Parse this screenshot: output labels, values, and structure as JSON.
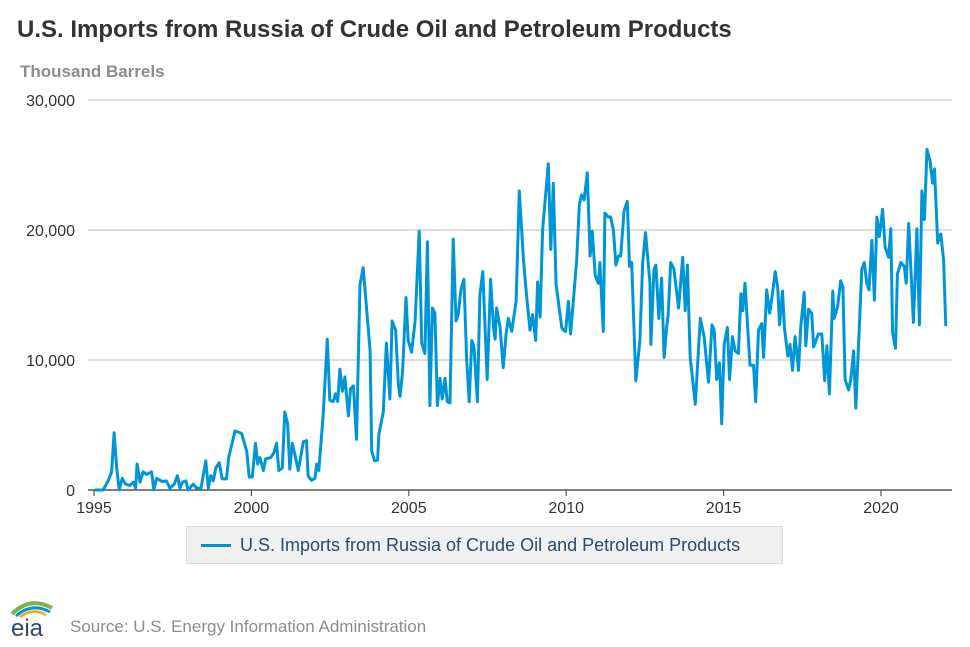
{
  "chart_data": {
    "type": "line",
    "title": "U.S. Imports from Russia of Crude Oil and Petroleum Products",
    "ylabel": "Thousand Barrels",
    "xlabel": "",
    "ylim": [
      0,
      30000
    ],
    "xlim": [
      1995,
      2022.3
    ],
    "yticks": [
      0,
      10000,
      20000,
      30000
    ],
    "ytick_labels": [
      "0",
      "10,000",
      "20,000",
      "30,000"
    ],
    "xticks": [
      1995,
      2000,
      2005,
      2010,
      2015,
      2020
    ],
    "xtick_labels": [
      "1995",
      "2000",
      "2005",
      "2010",
      "2015",
      "2020"
    ],
    "grid": true,
    "legend": "bottom-center",
    "color": "#0096d6",
    "series": [
      {
        "name": "U.S. Imports from Russia of Crude Oil and Petroleum Products",
        "points": [
          [
            1995.01,
            0
          ],
          [
            1995.29,
            0
          ],
          [
            1995.45,
            700
          ],
          [
            1995.56,
            1400
          ],
          [
            1995.64,
            4400
          ],
          [
            1995.72,
            1700
          ],
          [
            1995.8,
            0
          ],
          [
            1995.9,
            900
          ],
          [
            1996.0,
            450
          ],
          [
            1996.14,
            350
          ],
          [
            1996.25,
            600
          ],
          [
            1996.32,
            150
          ],
          [
            1996.37,
            2000
          ],
          [
            1996.46,
            600
          ],
          [
            1996.56,
            1400
          ],
          [
            1996.67,
            1200
          ],
          [
            1996.83,
            1400
          ],
          [
            1996.9,
            0
          ],
          [
            1996.99,
            900
          ],
          [
            1997.17,
            650
          ],
          [
            1997.3,
            700
          ],
          [
            1997.41,
            150
          ],
          [
            1997.55,
            450
          ],
          [
            1997.65,
            1100
          ],
          [
            1997.73,
            150
          ],
          [
            1997.81,
            600
          ],
          [
            1997.92,
            700
          ],
          [
            1997.99,
            0
          ],
          [
            1998.15,
            450
          ],
          [
            1998.26,
            150
          ],
          [
            1998.4,
            150
          ],
          [
            1998.55,
            2250
          ],
          [
            1998.63,
            150
          ],
          [
            1998.71,
            1100
          ],
          [
            1998.79,
            700
          ],
          [
            1998.87,
            1700
          ],
          [
            1998.98,
            2100
          ],
          [
            1999.07,
            850
          ],
          [
            1999.21,
            850
          ],
          [
            1999.28,
            2500
          ],
          [
            1999.48,
            4550
          ],
          [
            1999.69,
            4350
          ],
          [
            1999.85,
            3000
          ],
          [
            1999.93,
            1000
          ],
          [
            2000.03,
            1000
          ],
          [
            2000.13,
            3600
          ],
          [
            2000.2,
            2000
          ],
          [
            2000.27,
            2500
          ],
          [
            2000.38,
            1500
          ],
          [
            2000.45,
            2400
          ],
          [
            2000.62,
            2500
          ],
          [
            2000.72,
            2900
          ],
          [
            2000.8,
            3600
          ],
          [
            2000.87,
            1500
          ],
          [
            2000.98,
            1700
          ],
          [
            2001.06,
            6000
          ],
          [
            2001.15,
            5100
          ],
          [
            2001.22,
            1600
          ],
          [
            2001.3,
            3600
          ],
          [
            2001.4,
            2500
          ],
          [
            2001.49,
            1500
          ],
          [
            2001.65,
            3700
          ],
          [
            2001.75,
            3800
          ],
          [
            2001.8,
            1100
          ],
          [
            2001.91,
            750
          ],
          [
            2002.02,
            900
          ],
          [
            2002.07,
            2000
          ],
          [
            2002.14,
            1500
          ],
          [
            2002.28,
            5800
          ],
          [
            2002.41,
            11600
          ],
          [
            2002.49,
            6900
          ],
          [
            2002.6,
            6800
          ],
          [
            2002.67,
            7400
          ],
          [
            2002.74,
            6800
          ],
          [
            2002.81,
            9300
          ],
          [
            2002.89,
            7600
          ],
          [
            2002.97,
            8700
          ],
          [
            2003.08,
            5700
          ],
          [
            2003.15,
            7800
          ],
          [
            2003.24,
            8000
          ],
          [
            2003.34,
            3900
          ],
          [
            2003.45,
            15800
          ],
          [
            2003.55,
            17100
          ],
          [
            2003.77,
            10700
          ],
          [
            2003.82,
            3000
          ],
          [
            2003.91,
            2250
          ],
          [
            2004.01,
            2300
          ],
          [
            2004.05,
            4300
          ],
          [
            2004.19,
            6000
          ],
          [
            2004.29,
            11300
          ],
          [
            2004.4,
            7000
          ],
          [
            2004.47,
            13000
          ],
          [
            2004.58,
            12300
          ],
          [
            2004.67,
            8100
          ],
          [
            2004.72,
            7200
          ],
          [
            2004.8,
            9000
          ],
          [
            2004.91,
            14800
          ],
          [
            2004.98,
            11500
          ],
          [
            2005.09,
            10600
          ],
          [
            2005.2,
            13000
          ],
          [
            2005.33,
            19900
          ],
          [
            2005.41,
            11300
          ],
          [
            2005.51,
            10500
          ],
          [
            2005.59,
            19100
          ],
          [
            2005.67,
            6500
          ],
          [
            2005.75,
            14000
          ],
          [
            2005.83,
            13600
          ],
          [
            2005.91,
            6500
          ],
          [
            2005.99,
            8600
          ],
          [
            2006.06,
            7000
          ],
          [
            2006.15,
            8600
          ],
          [
            2006.22,
            6800
          ],
          [
            2006.31,
            6700
          ],
          [
            2006.41,
            19300
          ],
          [
            2006.5,
            13000
          ],
          [
            2006.57,
            13500
          ],
          [
            2006.66,
            15500
          ],
          [
            2006.75,
            16200
          ],
          [
            2006.84,
            10000
          ],
          [
            2006.92,
            6800
          ],
          [
            2007.0,
            11500
          ],
          [
            2007.07,
            11000
          ],
          [
            2007.18,
            6800
          ],
          [
            2007.26,
            15000
          ],
          [
            2007.35,
            16800
          ],
          [
            2007.49,
            8500
          ],
          [
            2007.6,
            16200
          ],
          [
            2007.69,
            12500
          ],
          [
            2007.74,
            11600
          ],
          [
            2007.79,
            14000
          ],
          [
            2007.9,
            12500
          ],
          [
            2008.0,
            9400
          ],
          [
            2008.09,
            12000
          ],
          [
            2008.16,
            13200
          ],
          [
            2008.27,
            12200
          ],
          [
            2008.41,
            14500
          ],
          [
            2008.51,
            23000
          ],
          [
            2008.64,
            17800
          ],
          [
            2008.74,
            15000
          ],
          [
            2008.85,
            12300
          ],
          [
            2008.93,
            13500
          ],
          [
            2009.03,
            11500
          ],
          [
            2009.09,
            16000
          ],
          [
            2009.17,
            13300
          ],
          [
            2009.25,
            20000
          ],
          [
            2009.43,
            25100
          ],
          [
            2009.51,
            18500
          ],
          [
            2009.59,
            23600
          ],
          [
            2009.68,
            15800
          ],
          [
            2009.86,
            12500
          ],
          [
            2009.91,
            12300
          ],
          [
            2009.98,
            12200
          ],
          [
            2010.07,
            14500
          ],
          [
            2010.14,
            12000
          ],
          [
            2010.33,
            17600
          ],
          [
            2010.42,
            22000
          ],
          [
            2010.49,
            22700
          ],
          [
            2010.57,
            22300
          ],
          [
            2010.67,
            24400
          ],
          [
            2010.76,
            18000
          ],
          [
            2010.83,
            19900
          ],
          [
            2010.92,
            16500
          ],
          [
            2011.02,
            15900
          ],
          [
            2011.07,
            17500
          ],
          [
            2011.18,
            12200
          ],
          [
            2011.23,
            21300
          ],
          [
            2011.34,
            21000
          ],
          [
            2011.41,
            21000
          ],
          [
            2011.5,
            20000
          ],
          [
            2011.58,
            17300
          ],
          [
            2011.66,
            18000
          ],
          [
            2011.73,
            18000
          ],
          [
            2011.84,
            21500
          ],
          [
            2011.94,
            22200
          ],
          [
            2012.01,
            17200
          ],
          [
            2012.08,
            17500
          ],
          [
            2012.21,
            8400
          ],
          [
            2012.34,
            11500
          ],
          [
            2012.43,
            17500
          ],
          [
            2012.52,
            19800
          ],
          [
            2012.66,
            16000
          ],
          [
            2012.69,
            11200
          ],
          [
            2012.79,
            17000
          ],
          [
            2012.85,
            17300
          ],
          [
            2012.94,
            13200
          ],
          [
            2013.03,
            16300
          ],
          [
            2013.11,
            10200
          ],
          [
            2013.19,
            12500
          ],
          [
            2013.24,
            13500
          ],
          [
            2013.32,
            17500
          ],
          [
            2013.42,
            17000
          ],
          [
            2013.57,
            14000
          ],
          [
            2013.7,
            17900
          ],
          [
            2013.78,
            13800
          ],
          [
            2013.85,
            17300
          ],
          [
            2013.94,
            10200
          ],
          [
            2014.1,
            6600
          ],
          [
            2014.26,
            13200
          ],
          [
            2014.38,
            11800
          ],
          [
            2014.52,
            8300
          ],
          [
            2014.63,
            12700
          ],
          [
            2014.7,
            12300
          ],
          [
            2014.78,
            8500
          ],
          [
            2014.87,
            9800
          ],
          [
            2014.94,
            5100
          ],
          [
            2015.02,
            11200
          ],
          [
            2015.12,
            12500
          ],
          [
            2015.19,
            8500
          ],
          [
            2015.28,
            11800
          ],
          [
            2015.37,
            10700
          ],
          [
            2015.47,
            10500
          ],
          [
            2015.55,
            15100
          ],
          [
            2015.61,
            13800
          ],
          [
            2015.68,
            15900
          ],
          [
            2015.84,
            9600
          ],
          [
            2015.95,
            9600
          ],
          [
            2016.02,
            6800
          ],
          [
            2016.11,
            12300
          ],
          [
            2016.21,
            12800
          ],
          [
            2016.27,
            10200
          ],
          [
            2016.37,
            15400
          ],
          [
            2016.46,
            13600
          ],
          [
            2016.53,
            14700
          ],
          [
            2016.64,
            16800
          ],
          [
            2016.72,
            15600
          ],
          [
            2016.78,
            12700
          ],
          [
            2016.87,
            15300
          ],
          [
            2016.93,
            12500
          ],
          [
            2017.04,
            10300
          ],
          [
            2017.11,
            11200
          ],
          [
            2017.19,
            9200
          ],
          [
            2017.27,
            11800
          ],
          [
            2017.38,
            9200
          ],
          [
            2017.45,
            12500
          ],
          [
            2017.56,
            15200
          ],
          [
            2017.61,
            11100
          ],
          [
            2017.7,
            13900
          ],
          [
            2017.8,
            13600
          ],
          [
            2017.86,
            11000
          ],
          [
            2018.01,
            12000
          ],
          [
            2018.12,
            12000
          ],
          [
            2018.21,
            8400
          ],
          [
            2018.28,
            11100
          ],
          [
            2018.36,
            7400
          ],
          [
            2018.47,
            15300
          ],
          [
            2018.51,
            13200
          ],
          [
            2018.62,
            14100
          ],
          [
            2018.72,
            16100
          ],
          [
            2018.79,
            15600
          ],
          [
            2018.86,
            8500
          ],
          [
            2018.97,
            7700
          ],
          [
            2019.04,
            8500
          ],
          [
            2019.13,
            10700
          ],
          [
            2019.2,
            6300
          ],
          [
            2019.39,
            17000
          ],
          [
            2019.47,
            17500
          ],
          [
            2019.55,
            15900
          ],
          [
            2019.62,
            15400
          ],
          [
            2019.71,
            19200
          ],
          [
            2019.79,
            14600
          ],
          [
            2019.87,
            21000
          ],
          [
            2019.95,
            19500
          ],
          [
            2020.05,
            21600
          ],
          [
            2020.13,
            18700
          ],
          [
            2020.24,
            17900
          ],
          [
            2020.31,
            20100
          ],
          [
            2020.37,
            12100
          ],
          [
            2020.46,
            10900
          ],
          [
            2020.52,
            16600
          ],
          [
            2020.63,
            17500
          ],
          [
            2020.74,
            17200
          ],
          [
            2020.8,
            15900
          ],
          [
            2020.88,
            20500
          ],
          [
            2021.03,
            12900
          ],
          [
            2021.14,
            20100
          ],
          [
            2021.22,
            12700
          ],
          [
            2021.3,
            23000
          ],
          [
            2021.38,
            20800
          ],
          [
            2021.46,
            26200
          ],
          [
            2021.56,
            25300
          ],
          [
            2021.64,
            23600
          ],
          [
            2021.7,
            24700
          ],
          [
            2021.8,
            19000
          ],
          [
            2021.9,
            19700
          ],
          [
            2021.99,
            17700
          ],
          [
            2022.06,
            12600
          ]
        ]
      }
    ]
  },
  "footer": {
    "source": "Source: U.S. Energy Information Administration",
    "logo_text": "eia"
  }
}
